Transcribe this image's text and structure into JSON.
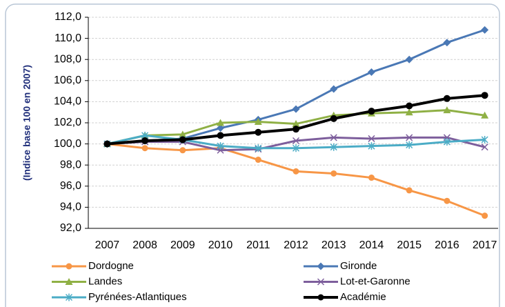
{
  "chart_data": {
    "type": "line",
    "y_label": "(Indice base 100 en 2007)",
    "categories": [
      "2007",
      "2008",
      "2009",
      "2010",
      "2011",
      "2012",
      "2013",
      "2014",
      "2015",
      "2016",
      "2017"
    ],
    "series": [
      {
        "name": "Dordogne",
        "color": "#f79646",
        "marker": "circle",
        "values": [
          100,
          99.6,
          99.4,
          99.6,
          98.5,
          97.4,
          97.2,
          96.8,
          95.6,
          94.6,
          93.2
        ]
      },
      {
        "name": "Gironde",
        "color": "#4a78b5",
        "marker": "diamond",
        "values": [
          100,
          100.3,
          100.5,
          101.5,
          102.3,
          103.3,
          105.2,
          106.8,
          108.0,
          109.6,
          110.8
        ]
      },
      {
        "name": "Landes",
        "color": "#8fb045",
        "marker": "triangle",
        "values": [
          100,
          100.8,
          100.9,
          102.0,
          102.1,
          101.9,
          102.7,
          102.9,
          103.0,
          103.2,
          102.7
        ]
      },
      {
        "name": "Lot-et-Garonne",
        "color": "#7d5e9c",
        "marker": "x",
        "values": [
          100,
          100.2,
          100.2,
          99.4,
          99.5,
          100.3,
          100.6,
          100.5,
          100.6,
          100.6,
          99.7
        ]
      },
      {
        "name": "Pyrénées-Atlantiques",
        "color": "#4bacc6",
        "marker": "star",
        "values": [
          100,
          100.8,
          100.4,
          99.8,
          99.6,
          99.6,
          99.7,
          99.8,
          99.9,
          100.2,
          100.4
        ]
      },
      {
        "name": "Académie",
        "color": "#000000",
        "marker": "circle",
        "values": [
          100,
          100.3,
          100.4,
          100.8,
          101.1,
          101.4,
          102.4,
          103.1,
          103.6,
          104.3,
          104.6
        ]
      }
    ],
    "ylim": [
      92,
      112
    ],
    "yticks": [
      {
        "value": 92,
        "label": "92,0"
      },
      {
        "value": 94,
        "label": "94,0"
      },
      {
        "value": 96,
        "label": "96,0"
      },
      {
        "value": 98,
        "label": "98,0"
      },
      {
        "value": 100,
        "label": "100,0"
      },
      {
        "value": 102,
        "label": "102,0"
      },
      {
        "value": 104,
        "label": "104,0"
      },
      {
        "value": 106,
        "label": "106,0"
      },
      {
        "value": 108,
        "label": "108,0"
      },
      {
        "value": 110,
        "label": "110,0"
      },
      {
        "value": 112,
        "label": "112,0"
      }
    ],
    "grid": true,
    "legend": "bottom"
  }
}
